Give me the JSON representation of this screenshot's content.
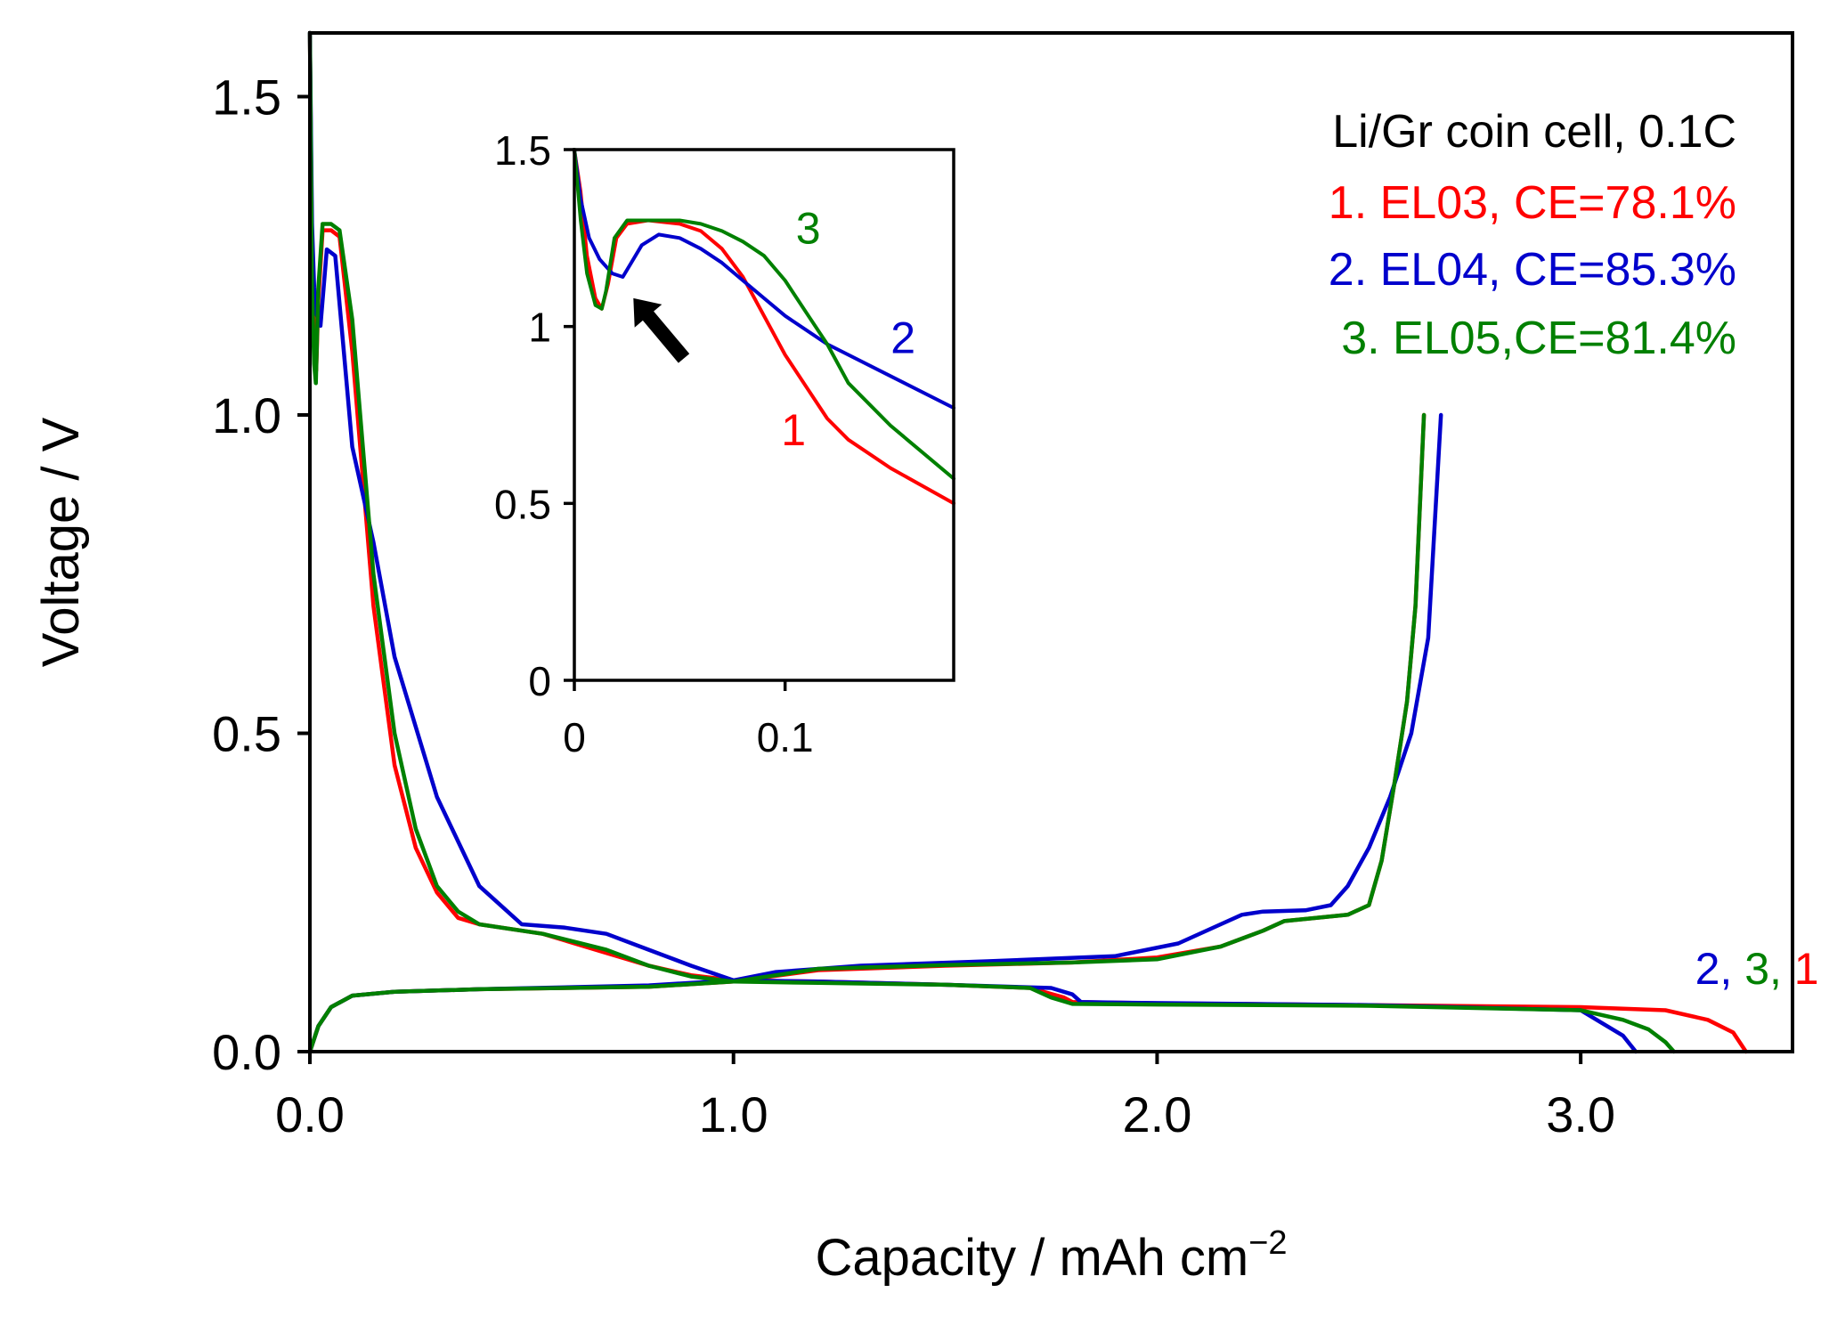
{
  "chart_data": [
    {
      "type": "line",
      "xlabel": "Capacity / mAh cm",
      "xlabel_superscript": "−2",
      "ylabel": "Voltage / V",
      "xlim": [
        0,
        3.5
      ],
      "ylim": [
        0,
        1.6
      ],
      "xticks": [
        0.0,
        1.0,
        2.0,
        3.0
      ],
      "xtick_labels": [
        "0.0",
        "1.0",
        "2.0",
        "3.0"
      ],
      "yticks": [
        0.0,
        0.5,
        1.0,
        1.5
      ],
      "ytick_labels": [
        "0.0",
        "0.5",
        "1.0",
        "1.5"
      ],
      "grid": false,
      "legend": {
        "placement": "top-right",
        "title": "Li/Gr coin cell, 0.1C",
        "entries": [
          {
            "label": "1. EL03, CE=78.1%",
            "color": "#ff0000"
          },
          {
            "label": "2. EL04, CE=85.3%",
            "color": "#0000cc"
          },
          {
            "label": "3. EL05,CE=81.4%",
            "color": "#008000"
          }
        ]
      },
      "annotations": [
        {
          "parts": [
            {
              "text": "2",
              "color": "#0000cc"
            },
            {
              "text": ", ",
              "color": "#0000cc"
            },
            {
              "text": "3",
              "color": "#008000"
            },
            {
              "text": ", ",
              "color": "#008000"
            },
            {
              "text": "1",
              "color": "#ff0000"
            }
          ],
          "x": 3.27,
          "y": 0.14
        }
      ],
      "series": [
        {
          "name": "EL03 discharge",
          "curve": "1",
          "color": "#ff0000",
          "x": [
            0,
            0.005,
            0.01,
            0.015,
            0.02,
            0.03,
            0.05,
            0.07,
            0.1,
            0.15,
            0.2,
            0.25,
            0.3,
            0.35,
            0.4,
            0.55,
            0.7,
            0.8,
            0.9,
            1.0,
            1.2,
            1.5,
            1.7,
            1.78,
            1.8,
            2.0,
            2.5,
            3.0,
            3.2,
            3.3,
            3.36,
            3.39
          ],
          "y": [
            1.6,
            1.25,
            1.12,
            1.07,
            1.18,
            1.29,
            1.29,
            1.28,
            1.1,
            0.7,
            0.45,
            0.32,
            0.25,
            0.21,
            0.2,
            0.185,
            0.155,
            0.135,
            0.12,
            0.112,
            0.11,
            0.105,
            0.1,
            0.085,
            0.078,
            0.076,
            0.073,
            0.07,
            0.065,
            0.05,
            0.03,
            0.0
          ]
        },
        {
          "name": "EL03 charge",
          "curve": "1",
          "color": "#ff0000",
          "x": [
            0,
            0.02,
            0.05,
            0.1,
            0.2,
            0.4,
            0.8,
            1.0,
            1.2,
            1.5,
            1.8,
            2.0,
            2.15,
            2.25,
            2.3,
            2.45,
            2.5,
            2.53,
            2.56,
            2.59,
            2.61,
            2.63
          ],
          "y": [
            0.0,
            0.04,
            0.07,
            0.088,
            0.094,
            0.098,
            0.102,
            0.11,
            0.128,
            0.135,
            0.14,
            0.148,
            0.165,
            0.19,
            0.205,
            0.215,
            0.23,
            0.3,
            0.42,
            0.55,
            0.7,
            1.0
          ]
        },
        {
          "name": "EL04 discharge",
          "curve": "2",
          "color": "#0000cc",
          "x": [
            0,
            0.005,
            0.01,
            0.015,
            0.025,
            0.04,
            0.06,
            0.08,
            0.1,
            0.15,
            0.2,
            0.3,
            0.4,
            0.5,
            0.6,
            0.7,
            0.8,
            0.9,
            1.0,
            1.2,
            1.5,
            1.75,
            1.8,
            1.82,
            1.9,
            2.5,
            3.0,
            3.05,
            3.1,
            3.13
          ],
          "y": [
            1.6,
            1.3,
            1.2,
            1.16,
            1.14,
            1.26,
            1.25,
            1.1,
            0.95,
            0.8,
            0.62,
            0.4,
            0.26,
            0.2,
            0.195,
            0.185,
            0.16,
            0.135,
            0.112,
            0.11,
            0.105,
            0.1,
            0.09,
            0.078,
            0.077,
            0.073,
            0.065,
            0.045,
            0.025,
            0.0
          ]
        },
        {
          "name": "EL04 charge",
          "curve": "2",
          "color": "#0000cc",
          "x": [
            0,
            0.02,
            0.05,
            0.1,
            0.2,
            0.4,
            0.8,
            1.0,
            1.1,
            1.3,
            1.6,
            1.9,
            2.05,
            2.15,
            2.2,
            2.25,
            2.35,
            2.41,
            2.45,
            2.5,
            2.55,
            2.6,
            2.64,
            2.67
          ],
          "y": [
            0.0,
            0.04,
            0.07,
            0.088,
            0.094,
            0.098,
            0.104,
            0.112,
            0.125,
            0.135,
            0.142,
            0.15,
            0.17,
            0.2,
            0.215,
            0.22,
            0.222,
            0.23,
            0.26,
            0.32,
            0.4,
            0.5,
            0.65,
            1.0
          ]
        },
        {
          "name": "EL05 discharge",
          "curve": "3",
          "color": "#008000",
          "x": [
            0,
            0.005,
            0.01,
            0.014,
            0.02,
            0.03,
            0.05,
            0.07,
            0.1,
            0.15,
            0.2,
            0.25,
            0.3,
            0.35,
            0.4,
            0.55,
            0.7,
            0.8,
            0.9,
            1.0,
            1.2,
            1.5,
            1.7,
            1.75,
            1.8,
            2.0,
            2.5,
            3.0,
            3.1,
            3.16,
            3.2,
            3.22
          ],
          "y": [
            1.6,
            1.2,
            1.08,
            1.05,
            1.2,
            1.3,
            1.3,
            1.29,
            1.15,
            0.75,
            0.5,
            0.35,
            0.26,
            0.22,
            0.2,
            0.185,
            0.16,
            0.135,
            0.118,
            0.11,
            0.108,
            0.105,
            0.1,
            0.085,
            0.075,
            0.074,
            0.072,
            0.065,
            0.05,
            0.035,
            0.015,
            0.0
          ]
        },
        {
          "name": "EL05 charge",
          "curve": "3",
          "color": "#008000",
          "x": [
            0,
            0.02,
            0.05,
            0.1,
            0.2,
            0.4,
            0.8,
            1.0,
            1.2,
            1.5,
            1.8,
            2.0,
            2.15,
            2.25,
            2.3,
            2.45,
            2.5,
            2.53,
            2.56,
            2.59,
            2.61,
            2.63
          ],
          "y": [
            0.0,
            0.04,
            0.07,
            0.088,
            0.094,
            0.098,
            0.102,
            0.11,
            0.13,
            0.136,
            0.14,
            0.145,
            0.165,
            0.19,
            0.205,
            0.215,
            0.23,
            0.3,
            0.42,
            0.55,
            0.7,
            1.0
          ]
        }
      ]
    },
    {
      "type": "line",
      "inset": true,
      "xlim": [
        0,
        0.18
      ],
      "ylim": [
        0,
        1.5
      ],
      "xticks": [
        0,
        0.1
      ],
      "xtick_labels": [
        "0",
        "0.1"
      ],
      "yticks": [
        0,
        0.5,
        1.0,
        1.5
      ],
      "ytick_labels": [
        "0",
        "0.5",
        "1",
        "1.5"
      ],
      "grid": false,
      "labels": [
        {
          "text": "1",
          "color": "#ff0000",
          "x": 0.104,
          "y": 0.71
        },
        {
          "text": "2",
          "color": "#0000cc",
          "x": 0.156,
          "y": 0.97
        },
        {
          "text": "3",
          "color": "#008000",
          "x": 0.111,
          "y": 1.28
        }
      ],
      "arrow": {
        "from": [
          0.052,
          0.91
        ],
        "to": [
          0.028,
          1.08
        ]
      },
      "series": [
        {
          "name": "EL03",
          "color": "#ff0000",
          "x": [
            0,
            0.003,
            0.006,
            0.01,
            0.013,
            0.016,
            0.02,
            0.025,
            0.035,
            0.05,
            0.06,
            0.07,
            0.08,
            0.09,
            0.1,
            0.11,
            0.12,
            0.13,
            0.15,
            0.18
          ],
          "y": [
            1.5,
            1.38,
            1.2,
            1.08,
            1.05,
            1.12,
            1.25,
            1.29,
            1.3,
            1.29,
            1.27,
            1.22,
            1.14,
            1.03,
            0.92,
            0.83,
            0.74,
            0.68,
            0.6,
            0.5
          ]
        },
        {
          "name": "EL04",
          "color": "#0000cc",
          "x": [
            0,
            0.003,
            0.007,
            0.012,
            0.018,
            0.023,
            0.027,
            0.032,
            0.04,
            0.05,
            0.06,
            0.07,
            0.08,
            0.09,
            0.1,
            0.12,
            0.15,
            0.18
          ],
          "y": [
            1.5,
            1.36,
            1.25,
            1.19,
            1.15,
            1.14,
            1.18,
            1.23,
            1.26,
            1.25,
            1.22,
            1.18,
            1.13,
            1.08,
            1.03,
            0.95,
            0.86,
            0.77
          ]
        },
        {
          "name": "EL05",
          "color": "#008000",
          "x": [
            0,
            0.003,
            0.006,
            0.01,
            0.013,
            0.015,
            0.019,
            0.025,
            0.035,
            0.05,
            0.06,
            0.07,
            0.08,
            0.09,
            0.1,
            0.11,
            0.12,
            0.13,
            0.15,
            0.18
          ],
          "y": [
            1.5,
            1.3,
            1.15,
            1.06,
            1.05,
            1.1,
            1.25,
            1.3,
            1.3,
            1.3,
            1.29,
            1.27,
            1.24,
            1.2,
            1.13,
            1.04,
            0.95,
            0.84,
            0.72,
            0.57
          ]
        }
      ]
    }
  ]
}
